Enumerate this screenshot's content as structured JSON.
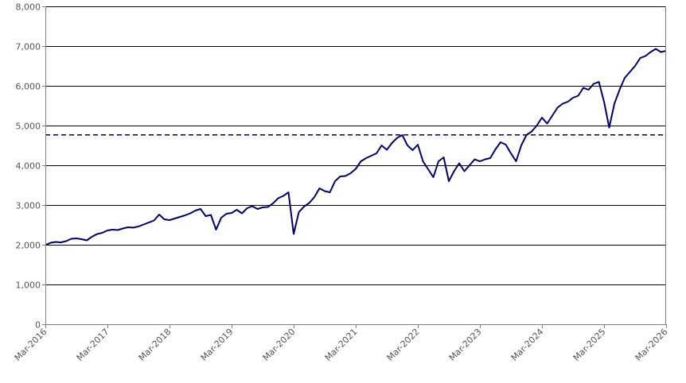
{
  "chart_data": {
    "type": "line",
    "title": "",
    "xlabel": "",
    "ylabel": "",
    "ylim": [
      0,
      8000
    ],
    "yticks": [
      {
        "value": 0,
        "label": "0"
      },
      {
        "value": 1000,
        "label": "1,000"
      },
      {
        "value": 2000,
        "label": "2,000"
      },
      {
        "value": 3000,
        "label": "3,000"
      },
      {
        "value": 4000,
        "label": "4,000"
      },
      {
        "value": 5000,
        "label": "5,000"
      },
      {
        "value": 6000,
        "label": "6,000"
      },
      {
        "value": 7000,
        "label": "7,000"
      },
      {
        "value": 8000,
        "label": "8,000"
      }
    ],
    "xlim": [
      "2016-03",
      "2026-03"
    ],
    "xticks": [
      {
        "value": "2016-03",
        "label": "Mar-2016"
      },
      {
        "value": "2017-03",
        "label": "Mar-2017"
      },
      {
        "value": "2018-03",
        "label": "Mar-2018"
      },
      {
        "value": "2019-03",
        "label": "Mar-2019"
      },
      {
        "value": "2020-03",
        "label": "Mar-2020"
      },
      {
        "value": "2021-03",
        "label": "Mar-2021"
      },
      {
        "value": "2022-03",
        "label": "Mar-2022"
      },
      {
        "value": "2023-03",
        "label": "Mar-2023"
      },
      {
        "value": "2024-03",
        "label": "Mar-2024"
      },
      {
        "value": "2025-03",
        "label": "Mar-2025"
      },
      {
        "value": "2026-03",
        "label": "Mar-2026"
      }
    ],
    "grid": {
      "horizontal": true,
      "vertical": false
    },
    "legend": "none",
    "colors": {
      "series": "#000066",
      "reference": "#000066",
      "grid": "#000000",
      "axis": "#808080",
      "tick_text": "#555555"
    },
    "reference_line": {
      "y": 4766,
      "style": "dashed"
    },
    "series": [
      {
        "x": [
          "2016-03",
          "2016-04",
          "2016-05",
          "2016-06",
          "2016-07",
          "2016-08",
          "2016-09",
          "2016-10",
          "2016-11",
          "2016-12",
          "2017-01",
          "2017-02",
          "2017-03",
          "2017-04",
          "2017-05",
          "2017-06",
          "2017-07",
          "2017-08",
          "2017-09",
          "2017-10",
          "2017-11",
          "2017-12",
          "2018-01",
          "2018-02",
          "2018-03",
          "2018-04",
          "2018-05",
          "2018-06",
          "2018-07",
          "2018-08",
          "2018-09",
          "2018-10",
          "2018-11",
          "2018-12",
          "2019-01",
          "2019-02",
          "2019-03",
          "2019-04",
          "2019-05",
          "2019-06",
          "2019-07",
          "2019-08",
          "2019-09",
          "2019-10",
          "2019-11",
          "2019-12",
          "2020-01",
          "2020-02",
          "2020-03",
          "2020-04",
          "2020-05",
          "2020-06",
          "2020-07",
          "2020-08",
          "2020-09",
          "2020-10",
          "2020-11",
          "2020-12",
          "2021-01",
          "2021-02",
          "2021-03",
          "2021-04",
          "2021-05",
          "2021-06",
          "2021-07",
          "2021-08",
          "2021-09",
          "2021-10",
          "2021-11",
          "2021-12",
          "2022-01",
          "2022-02",
          "2022-03",
          "2022-04",
          "2022-05",
          "2022-06",
          "2022-07",
          "2022-08",
          "2022-09",
          "2022-10",
          "2022-11",
          "2022-12",
          "2023-01",
          "2023-02",
          "2023-03",
          "2023-04",
          "2023-05",
          "2023-06",
          "2023-07",
          "2023-08",
          "2023-09",
          "2023-10",
          "2023-11",
          "2023-12",
          "2024-01",
          "2024-02",
          "2024-03",
          "2024-04",
          "2024-05",
          "2024-06",
          "2024-07",
          "2024-08",
          "2024-09",
          "2024-10",
          "2024-11",
          "2024-12",
          "2025-01",
          "2025-02",
          "2025-03",
          "2025-04",
          "2025-05",
          "2025-06",
          "2025-07",
          "2025-08",
          "2025-09",
          "2025-10",
          "2025-11",
          "2025-12",
          "2026-01",
          "2026-02",
          "2026-03"
        ],
        "values": [
          1990,
          2050,
          2070,
          2060,
          2090,
          2150,
          2160,
          2140,
          2110,
          2200,
          2270,
          2300,
          2360,
          2380,
          2370,
          2410,
          2440,
          2430,
          2460,
          2510,
          2560,
          2610,
          2760,
          2640,
          2620,
          2660,
          2700,
          2740,
          2790,
          2860,
          2900,
          2720,
          2750,
          2380,
          2680,
          2780,
          2800,
          2880,
          2790,
          2920,
          2970,
          2900,
          2940,
          2950,
          3040,
          3170,
          3230,
          3320,
          2270,
          2820,
          2960,
          3050,
          3200,
          3420,
          3350,
          3320,
          3600,
          3720,
          3730,
          3800,
          3910,
          4100,
          4180,
          4240,
          4300,
          4500,
          4390,
          4560,
          4690,
          4760,
          4500,
          4380,
          4520,
          4100,
          3900,
          3700,
          4100,
          4200,
          3600,
          3850,
          4050,
          3850,
          4000,
          4150,
          4100,
          4150,
          4180,
          4400,
          4580,
          4520,
          4300,
          4100,
          4500,
          4760,
          4850,
          5000,
          5200,
          5050,
          5250,
          5450,
          5550,
          5600,
          5700,
          5750,
          5950,
          5900,
          6050,
          6100,
          5600,
          4950,
          5550,
          5900,
          6200,
          6350,
          6500,
          6700,
          6750,
          6850,
          6930,
          6850,
          6880
        ]
      }
    ]
  }
}
